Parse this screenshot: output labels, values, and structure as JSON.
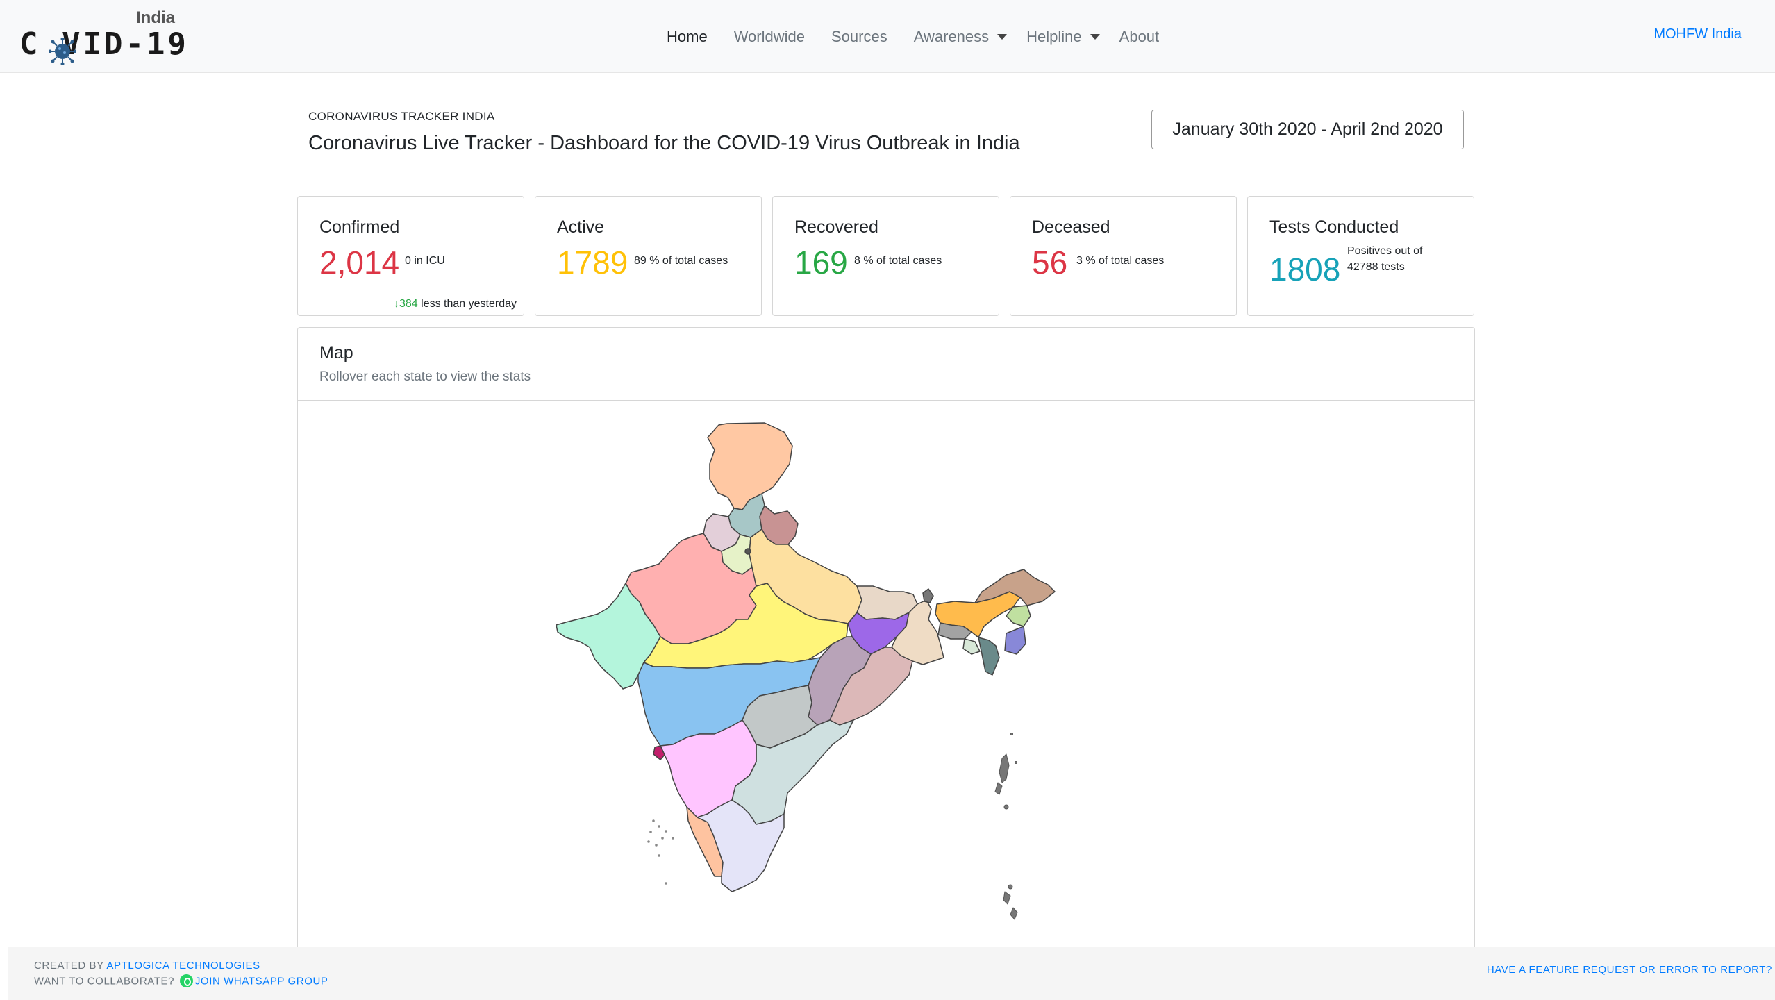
{
  "brand": {
    "top": "India",
    "name": "C VID-19"
  },
  "nav": {
    "home": "Home",
    "worldwide": "Worldwide",
    "sources": "Sources",
    "awareness": "Awareness",
    "helpline": "Helpline",
    "about": "About",
    "right_link": "MOHFW India"
  },
  "header": {
    "kicker": "CORONAVIRUS TRACKER INDIA",
    "title": "Coronavirus Live Tracker - Dashboard for the COVID-19 Virus Outbreak in India",
    "date_range": "January 30th 2020 - April 2nd 2020"
  },
  "cards": {
    "confirmed": {
      "title": "Confirmed",
      "value": "2,014",
      "note": "0 in ICU",
      "delta": "384",
      "delta_text": " less than yesterday",
      "color": "#dc3545"
    },
    "active": {
      "title": "Active",
      "value": "1789",
      "note": "89 % of total cases",
      "color": "#ffc107"
    },
    "recovered": {
      "title": "Recovered",
      "value": "169",
      "note": "8 % of total cases",
      "color": "#28a745"
    },
    "deceased": {
      "title": "Deceased",
      "value": "56",
      "note": "3 % of total cases",
      "color": "#dc3545"
    },
    "tests": {
      "title": "Tests Conducted",
      "value": "1808",
      "note_line1": "Positives out of",
      "note_line2": "42788 tests",
      "color": "#17a2b8"
    }
  },
  "map": {
    "title": "Map",
    "subtitle": "Rollover each state to view the stats"
  },
  "footer": {
    "created_prefix": "CREATED BY ",
    "created_link": "APTLOGICA TECHNOLOGIES",
    "collab_prefix": "WANT TO COLLABORATE? ",
    "collab_link": "JOIN WHATSAPP GROUP",
    "report_link": "HAVE A FEATURE REQUEST OR ERROR TO REPORT?"
  }
}
